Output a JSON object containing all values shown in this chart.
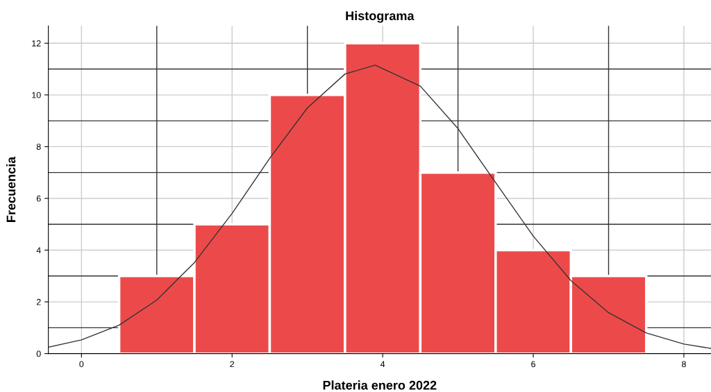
{
  "chart_data": {
    "type": "histogram",
    "title": "Histograma",
    "xlabel": "Plateria enero 2022",
    "ylabel": "Frecuencia",
    "bins": [
      0.5,
      1.5,
      2.5,
      3.5,
      4.5,
      5.5,
      6.5,
      7.5
    ],
    "values": [
      3,
      5,
      10,
      12,
      7,
      4,
      3
    ],
    "color": "#ec4a4a",
    "series": [
      {
        "type": "line",
        "color": "#333333",
        "x": [
          -0.44,
          0,
          0.5,
          1,
          1.5,
          2,
          2.5,
          3,
          3.5,
          3.9,
          4.5,
          5,
          5.5,
          6,
          6.5,
          7,
          7.5,
          8,
          8.36
        ],
        "values": [
          0.25,
          0.53,
          1.1,
          2.07,
          3.52,
          5.42,
          7.55,
          9.5,
          10.81,
          11.15,
          10.34,
          8.7,
          6.61,
          4.54,
          2.82,
          1.58,
          0.8,
          0.37,
          0.2
        ]
      }
    ],
    "xlim": [
      -0.44,
      8.36
    ],
    "ylim": [
      0,
      12.67
    ],
    "xticks": [
      0,
      2,
      4,
      6,
      8
    ],
    "yticks": [
      0,
      2,
      4,
      6,
      8,
      10,
      12
    ],
    "grid": true,
    "ref_lines": [
      {
        "axis": "x",
        "value": 1,
        "color": "#333333"
      },
      {
        "axis": "x",
        "value": 3,
        "color": "#333333"
      },
      {
        "axis": "x",
        "value": 5,
        "color": "#333333"
      },
      {
        "axis": "x",
        "value": 7,
        "color": "#333333"
      },
      {
        "axis": "y",
        "value": 1,
        "color": "#333333"
      },
      {
        "axis": "y",
        "value": 3,
        "color": "#333333"
      },
      {
        "axis": "y",
        "value": 5,
        "color": "#333333"
      },
      {
        "axis": "y",
        "value": 7,
        "color": "#333333"
      },
      {
        "axis": "y",
        "value": 9,
        "color": "#333333"
      },
      {
        "axis": "y",
        "value": 11,
        "color": "#333333"
      }
    ],
    "legend": false
  }
}
